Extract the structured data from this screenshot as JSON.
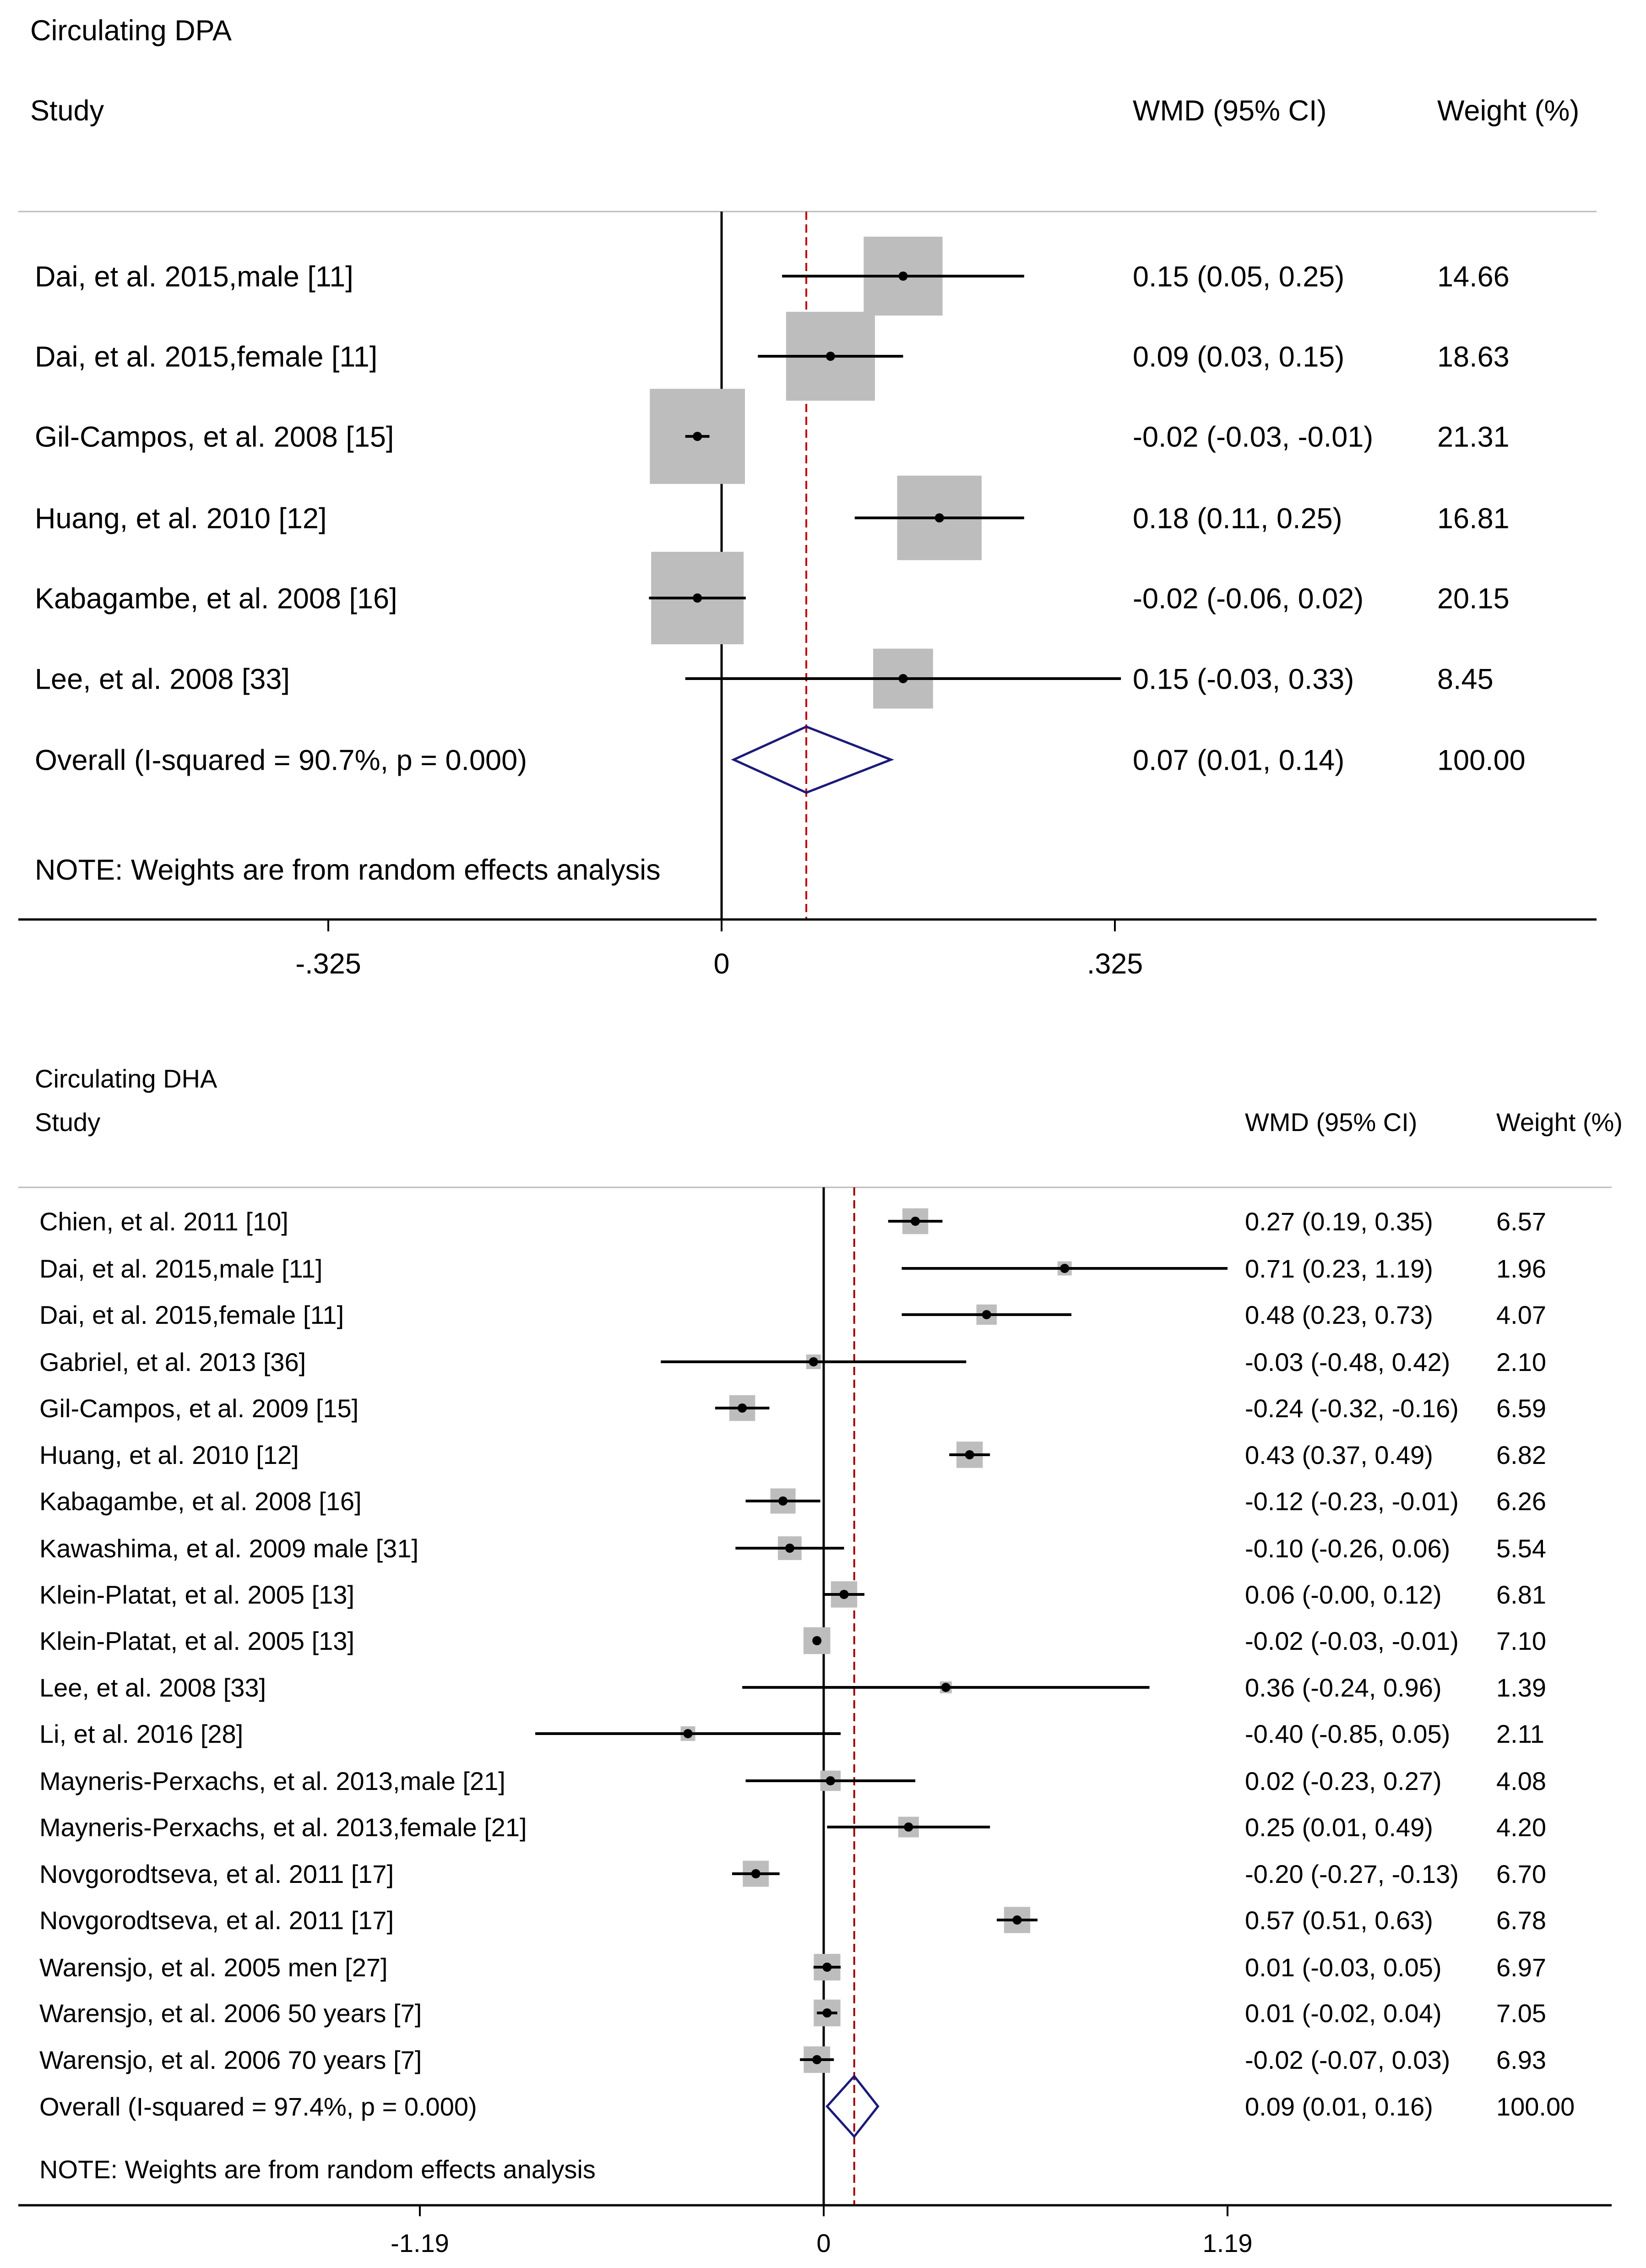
{
  "chart_data": [
    {
      "type": "forest",
      "title": "Circulating DPA",
      "columns": {
        "study": "Study",
        "effect": "WMD (95% CI)",
        "weight": "Weight (%)"
      },
      "axis": {
        "min": -0.325,
        "max": 0.325,
        "ticks": [
          -0.325,
          0,
          0.325
        ],
        "tick_labels": [
          "-.325",
          "0",
          ".325"
        ]
      },
      "studies": [
        {
          "label": "Dai, et al. 2015,male [11]",
          "est": 0.15,
          "lo": 0.05,
          "hi": 0.25,
          "wmd_text": "0.15 (0.05, 0.25)",
          "weight": 14.66,
          "weight_text": "14.66"
        },
        {
          "label": "Dai, et al. 2015,female [11]",
          "est": 0.09,
          "lo": 0.03,
          "hi": 0.15,
          "wmd_text": "0.09 (0.03, 0.15)",
          "weight": 18.63,
          "weight_text": "18.63"
        },
        {
          "label": "Gil-Campos, et al. 2008 [15]",
          "est": -0.02,
          "lo": -0.03,
          "hi": -0.01,
          "wmd_text": "-0.02 (-0.03, -0.01)",
          "weight": 21.31,
          "weight_text": "21.31"
        },
        {
          "label": "Huang, et al. 2010 [12]",
          "est": 0.18,
          "lo": 0.11,
          "hi": 0.25,
          "wmd_text": "0.18 (0.11, 0.25)",
          "weight": 16.81,
          "weight_text": "16.81"
        },
        {
          "label": "Kabagambe, et al. 2008 [16]",
          "est": -0.02,
          "lo": -0.06,
          "hi": 0.02,
          "wmd_text": "-0.02 (-0.06, 0.02)",
          "weight": 20.15,
          "weight_text": "20.15"
        },
        {
          "label": "Lee, et al. 2008 [33]",
          "est": 0.15,
          "lo": -0.03,
          "hi": 0.33,
          "wmd_text": "0.15 (-0.03, 0.33)",
          "weight": 8.45,
          "weight_text": "8.45"
        }
      ],
      "overall": {
        "label": "Overall  (I-squared = 90.7%, p = 0.000)",
        "est": 0.07,
        "lo": 0.01,
        "hi": 0.14,
        "wmd_text": "0.07 (0.01, 0.14)",
        "weight_text": "100.00"
      },
      "note": "NOTE: Weights are from random effects analysis",
      "colors": {
        "ref_line": "#c00000",
        "diamond": "#1a1a7a",
        "box": "#bdbdbd",
        "line": "#000000"
      }
    },
    {
      "type": "forest",
      "title": "Circulating DHA",
      "columns": {
        "study": "Study",
        "effect": "WMD (95% CI)",
        "weight": "Weight (%)"
      },
      "axis": {
        "min": -1.19,
        "max": 1.19,
        "ticks": [
          -1.19,
          0,
          1.19
        ],
        "tick_labels": [
          "-1.19",
          "0",
          "1.19"
        ]
      },
      "studies": [
        {
          "label": "Chien, et al. 2011 [10]",
          "est": 0.27,
          "lo": 0.19,
          "hi": 0.35,
          "wmd_text": "0.27 (0.19, 0.35)",
          "weight": 6.57,
          "weight_text": "6.57"
        },
        {
          "label": "Dai, et al. 2015,male [11]",
          "est": 0.71,
          "lo": 0.23,
          "hi": 1.19,
          "wmd_text": "0.71 (0.23, 1.19)",
          "weight": 1.96,
          "weight_text": "1.96"
        },
        {
          "label": "Dai, et al. 2015,female [11]",
          "est": 0.48,
          "lo": 0.23,
          "hi": 0.73,
          "wmd_text": "0.48 (0.23, 0.73)",
          "weight": 4.07,
          "weight_text": "4.07"
        },
        {
          "label": "Gabriel, et al. 2013 [36]",
          "est": -0.03,
          "lo": -0.48,
          "hi": 0.42,
          "wmd_text": "-0.03 (-0.48, 0.42)",
          "weight": 2.1,
          "weight_text": "2.10"
        },
        {
          "label": "Gil-Campos, et al. 2009 [15]",
          "est": -0.24,
          "lo": -0.32,
          "hi": -0.16,
          "wmd_text": "-0.24 (-0.32, -0.16)",
          "weight": 6.59,
          "weight_text": "6.59"
        },
        {
          "label": "Huang, et al. 2010 [12]",
          "est": 0.43,
          "lo": 0.37,
          "hi": 0.49,
          "wmd_text": "0.43 (0.37, 0.49)",
          "weight": 6.82,
          "weight_text": "6.82"
        },
        {
          "label": "Kabagambe, et al. 2008 [16]",
          "est": -0.12,
          "lo": -0.23,
          "hi": -0.01,
          "wmd_text": "-0.12 (-0.23, -0.01)",
          "weight": 6.26,
          "weight_text": "6.26"
        },
        {
          "label": "Kawashima, et al. 2009 male [31]",
          "est": -0.1,
          "lo": -0.26,
          "hi": 0.06,
          "wmd_text": "-0.10 (-0.26, 0.06)",
          "weight": 5.54,
          "weight_text": "5.54"
        },
        {
          "label": "Klein-Platat, et al. 2005 [13]",
          "est": 0.06,
          "lo": -0.0,
          "hi": 0.12,
          "wmd_text": "0.06 (-0.00, 0.12)",
          "weight": 6.81,
          "weight_text": "6.81"
        },
        {
          "label": "Klein-Platat, et al. 2005 [13]",
          "est": -0.02,
          "lo": -0.03,
          "hi": -0.01,
          "wmd_text": "-0.02 (-0.03, -0.01)",
          "weight": 7.1,
          "weight_text": "7.10"
        },
        {
          "label": "Lee, et al. 2008 [33]",
          "est": 0.36,
          "lo": -0.24,
          "hi": 0.96,
          "wmd_text": "0.36 (-0.24, 0.96)",
          "weight": 1.39,
          "weight_text": "1.39"
        },
        {
          "label": "Li, et al. 2016 [28]",
          "est": -0.4,
          "lo": -0.85,
          "hi": 0.05,
          "wmd_text": "-0.40 (-0.85, 0.05)",
          "weight": 2.11,
          "weight_text": "2.11"
        },
        {
          "label": "Mayneris-Perxachs, et al. 2013,male [21]",
          "est": 0.02,
          "lo": -0.23,
          "hi": 0.27,
          "wmd_text": "0.02 (-0.23, 0.27)",
          "weight": 4.08,
          "weight_text": "4.08"
        },
        {
          "label": "Mayneris-Perxachs, et al. 2013,female [21]",
          "est": 0.25,
          "lo": 0.01,
          "hi": 0.49,
          "wmd_text": "0.25 (0.01, 0.49)",
          "weight": 4.2,
          "weight_text": "4.20"
        },
        {
          "label": "Novgorodtseva, et al. 2011 [17]",
          "est": -0.2,
          "lo": -0.27,
          "hi": -0.13,
          "wmd_text": "-0.20 (-0.27, -0.13)",
          "weight": 6.7,
          "weight_text": "6.70"
        },
        {
          "label": "Novgorodtseva, et al. 2011 [17]",
          "est": 0.57,
          "lo": 0.51,
          "hi": 0.63,
          "wmd_text": "0.57 (0.51, 0.63)",
          "weight": 6.78,
          "weight_text": "6.78"
        },
        {
          "label": "Warensjo, et al. 2005 men [27]",
          "est": 0.01,
          "lo": -0.03,
          "hi": 0.05,
          "wmd_text": "0.01 (-0.03, 0.05)",
          "weight": 6.97,
          "weight_text": "6.97"
        },
        {
          "label": "Warensjo, et al. 2006 50 years [7]",
          "est": 0.01,
          "lo": -0.02,
          "hi": 0.04,
          "wmd_text": "0.01 (-0.02, 0.04)",
          "weight": 7.05,
          "weight_text": "7.05"
        },
        {
          "label": "Warensjo, et al. 2006 70 years [7]",
          "est": -0.02,
          "lo": -0.07,
          "hi": 0.03,
          "wmd_text": "-0.02 (-0.07, 0.03)",
          "weight": 6.93,
          "weight_text": "6.93"
        }
      ],
      "overall": {
        "label": "Overall  (I-squared = 97.4%, p = 0.000)",
        "est": 0.09,
        "lo": 0.01,
        "hi": 0.16,
        "wmd_text": "0.09 (0.01, 0.16)",
        "weight_text": "100.00"
      },
      "note": "NOTE: Weights are from random effects analysis",
      "colors": {
        "ref_line": "#a00000",
        "diamond": "#1a1a7a",
        "box": "#bdbdbd",
        "line": "#000000"
      }
    }
  ]
}
